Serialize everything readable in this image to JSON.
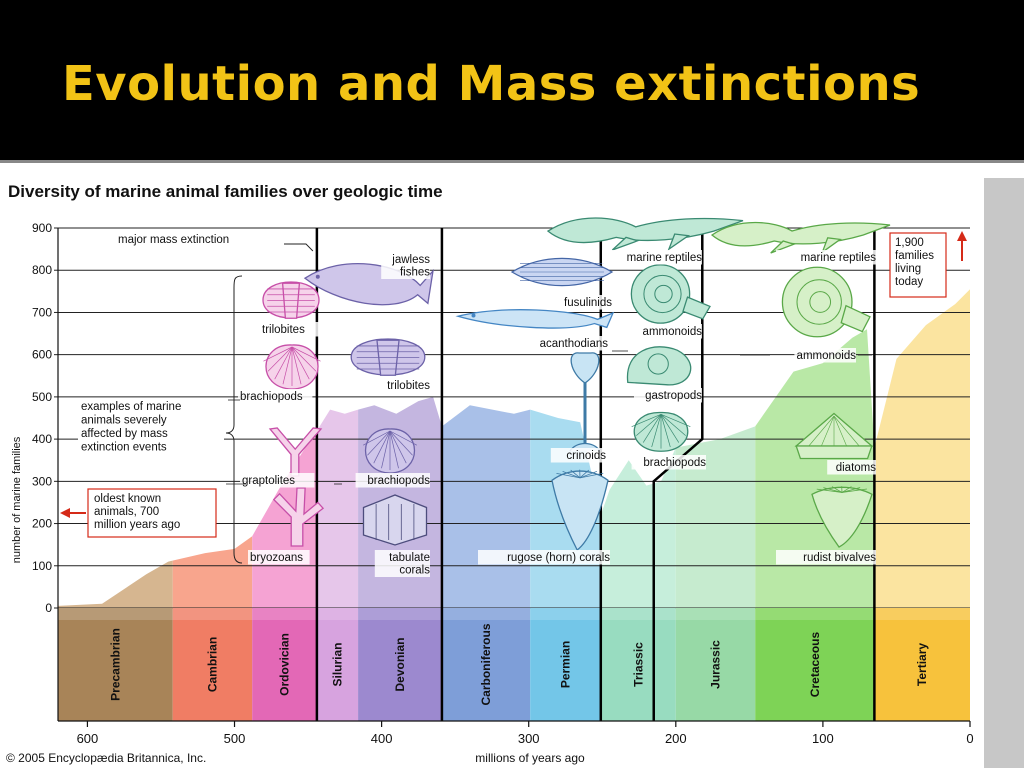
{
  "slide": {
    "title": "Evolution and Mass extinctions"
  },
  "colors": {
    "title": "#f2c316",
    "background": "#000000"
  },
  "chart_data": {
    "type": "area",
    "title": "Diversity of marine animal families over geologic time",
    "xlabel": "millions of years ago",
    "ylabel": "number of marine families",
    "xlim": [
      620,
      0
    ],
    "ylim": [
      0,
      900
    ],
    "x_ticks": [
      600,
      500,
      400,
      300,
      200,
      100,
      0
    ],
    "y_ticks": [
      0,
      100,
      200,
      300,
      400,
      500,
      600,
      700,
      800,
      900
    ],
    "grid": true,
    "credit": "© 2005 Encyclopædia Britannica, Inc.",
    "periods": [
      {
        "name": "Precambrian",
        "start": 620,
        "end": 542,
        "color": "#d6b690",
        "band": "#a88458"
      },
      {
        "name": "Cambrian",
        "start": 542,
        "end": 488,
        "color": "#f8a58d",
        "band": "#f07d64"
      },
      {
        "name": "Ordovician",
        "start": 488,
        "end": 444,
        "color": "#f5a3d3",
        "band": "#e368b6"
      },
      {
        "name": "Silurian",
        "start": 444,
        "end": 416,
        "color": "#e6c6ea",
        "band": "#d7a3df"
      },
      {
        "name": "Devonian",
        "start": 416,
        "end": 359,
        "color": "#c4b6e0",
        "band": "#9c89cf"
      },
      {
        "name": "Carboniferous",
        "start": 359,
        "end": 299,
        "color": "#a9c0e8",
        "band": "#7e9ed8"
      },
      {
        "name": "Permian",
        "start": 299,
        "end": 251,
        "color": "#a9dcf0",
        "band": "#73c6e8"
      },
      {
        "name": "Triassic",
        "start": 251,
        "end": 200,
        "color": "#c6eedb",
        "band": "#98dcc0"
      },
      {
        "name": "Jurassic",
        "start": 200,
        "end": 146,
        "color": "#c6ebcf",
        "band": "#97d9a6"
      },
      {
        "name": "Cretaceous",
        "start": 146,
        "end": 65,
        "color": "#b9e8a6",
        "band": "#7ed356"
      },
      {
        "name": "Tertiary",
        "start": 65,
        "end": 0,
        "color": "#fbe4a0",
        "band": "#f7c23c"
      }
    ],
    "diversity": {
      "x": [
        620,
        590,
        560,
        545,
        520,
        500,
        488,
        470,
        450,
        444,
        435,
        425,
        416,
        405,
        390,
        375,
        365,
        359,
        340,
        310,
        299,
        280,
        265,
        251,
        245,
        232,
        220,
        210,
        200,
        170,
        146,
        120,
        100,
        80,
        70,
        65,
        50,
        30,
        10,
        0
      ],
      "y": [
        5,
        10,
        80,
        110,
        130,
        140,
        170,
        280,
        390,
        420,
        470,
        460,
        470,
        480,
        460,
        490,
        500,
        430,
        480,
        460,
        470,
        450,
        440,
        220,
        280,
        350,
        290,
        300,
        380,
        400,
        430,
        560,
        580,
        640,
        660,
        380,
        590,
        670,
        720,
        755
      ]
    },
    "mass_extinctions_mya": [
      444,
      359,
      251,
      215,
      65
    ],
    "current_families": {
      "value": 1900,
      "label": [
        "1,900",
        "families",
        "living",
        "today"
      ]
    },
    "oldest_known": {
      "label": [
        "oldest known",
        "animals, 700",
        "million years ago"
      ]
    },
    "annotations": {
      "major_extinction": "major mass extinction",
      "examples_label": [
        "examples of marine",
        "animals severely",
        "affected by mass",
        "extinction events"
      ],
      "taxa": [
        {
          "id": "trilobites-1",
          "label": "trilobites"
        },
        {
          "id": "brachiopods-1",
          "label": "brachiopods"
        },
        {
          "id": "graptolites",
          "label": "graptolites"
        },
        {
          "id": "bryozoans",
          "label": "bryozoans"
        },
        {
          "id": "jawless-fishes",
          "label": [
            "jawless",
            "fishes"
          ]
        },
        {
          "id": "trilobites-2",
          "label": "trilobites"
        },
        {
          "id": "brachiopods-2",
          "label": "brachiopods"
        },
        {
          "id": "tabulate-corals",
          "label": [
            "tabulate",
            "corals"
          ]
        },
        {
          "id": "fusulinids",
          "label": "fusulinids"
        },
        {
          "id": "acanthodians",
          "label": "acanthodians"
        },
        {
          "id": "crinoids",
          "label": "crinoids"
        },
        {
          "id": "rugose-corals",
          "label": "rugose (horn) corals"
        },
        {
          "id": "marine-reptiles-1",
          "label": "marine reptiles"
        },
        {
          "id": "ammonoids-1",
          "label": "ammonoids"
        },
        {
          "id": "gastropods",
          "label": "gastropods"
        },
        {
          "id": "brachiopods-3",
          "label": "brachiopods"
        },
        {
          "id": "marine-reptiles-2",
          "label": "marine reptiles"
        },
        {
          "id": "ammonoids-2",
          "label": "ammonoids"
        },
        {
          "id": "diatoms",
          "label": "diatoms"
        },
        {
          "id": "rudist-bivalves",
          "label": "rudist bivalves"
        }
      ]
    }
  }
}
